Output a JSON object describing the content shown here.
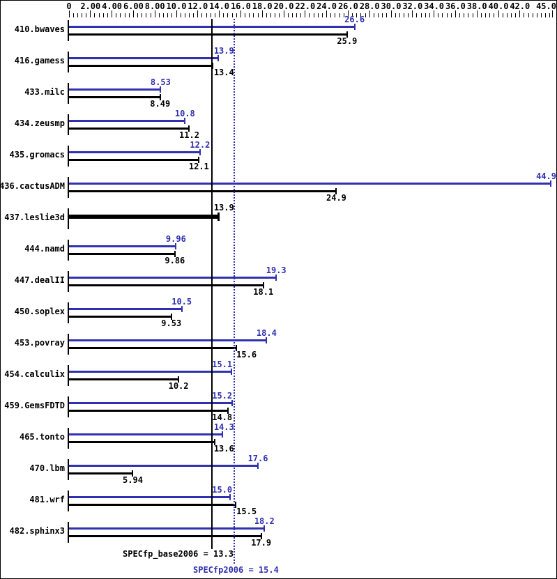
{
  "chart_data": {
    "type": "bar",
    "orientation": "horizontal",
    "colors": {
      "peak": "#3030b0",
      "base": "#000000"
    },
    "axis": {
      "min": 0,
      "max": 45,
      "major_step": 2.0,
      "minor_step": 0.4,
      "tick_labels": [
        {
          "value": 0,
          "label": "0"
        },
        {
          "value": 2,
          "label": "2.00"
        },
        {
          "value": 4,
          "label": "4.00"
        },
        {
          "value": 6,
          "label": "6.00"
        },
        {
          "value": 8,
          "label": "8.00"
        },
        {
          "value": 10,
          "label": "10.0"
        },
        {
          "value": 12,
          "label": "12.0"
        },
        {
          "value": 14,
          "label": "14.0"
        },
        {
          "value": 16,
          "label": "16.0"
        },
        {
          "value": 18,
          "label": "18.0"
        },
        {
          "value": 20,
          "label": "20.0"
        },
        {
          "value": 22,
          "label": "22.0"
        },
        {
          "value": 24,
          "label": "24.0"
        },
        {
          "value": 26,
          "label": "26.0"
        },
        {
          "value": 28,
          "label": "28.0"
        },
        {
          "value": 30,
          "label": "30.0"
        },
        {
          "value": 32,
          "label": "32.0"
        },
        {
          "value": 34,
          "label": "34.0"
        },
        {
          "value": 36,
          "label": "36.0"
        },
        {
          "value": 38,
          "label": "38.0"
        },
        {
          "value": 40,
          "label": "40.0"
        },
        {
          "value": 42,
          "label": "42.0"
        },
        {
          "value": 45,
          "label": "45.0"
        }
      ]
    },
    "benchmarks": [
      {
        "name": "410.bwaves",
        "peak": 26.6,
        "peak_label": "26.6",
        "base": 25.9,
        "base_label": "25.9"
      },
      {
        "name": "416.gamess",
        "peak": 13.9,
        "peak_label": "13.9",
        "base": 13.4,
        "base_label": "13.4"
      },
      {
        "name": "433.milc",
        "peak": 8.53,
        "peak_label": "8.53",
        "base": 8.49,
        "base_label": "8.49"
      },
      {
        "name": "434.zeusmp",
        "peak": 10.8,
        "peak_label": "10.8",
        "base": 11.2,
        "base_label": "11.2"
      },
      {
        "name": "435.gromacs",
        "peak": 12.2,
        "peak_label": "12.2",
        "base": 12.1,
        "base_label": "12.1"
      },
      {
        "name": "436.cactusADM",
        "peak": 44.9,
        "peak_label": "44.9",
        "base": 24.9,
        "base_label": "24.9"
      },
      {
        "name": "437.leslie3d",
        "peak": null,
        "peak_label": null,
        "base": 13.9,
        "base_label": "13.9",
        "single_bar": true
      },
      {
        "name": "444.namd",
        "peak": 9.96,
        "peak_label": "9.96",
        "base": 9.86,
        "base_label": "9.86"
      },
      {
        "name": "447.dealII",
        "peak": 19.3,
        "peak_label": "19.3",
        "base": 18.1,
        "base_label": "18.1"
      },
      {
        "name": "450.soplex",
        "peak": 10.5,
        "peak_label": "10.5",
        "base": 9.53,
        "base_label": "9.53"
      },
      {
        "name": "453.povray",
        "peak": 18.4,
        "peak_label": "18.4",
        "base": 15.6,
        "base_label": "15.6"
      },
      {
        "name": "454.calculix",
        "peak": 15.1,
        "peak_label": "15.1",
        "base": 10.2,
        "base_label": "10.2"
      },
      {
        "name": "459.GemsFDTD",
        "peak": 15.2,
        "peak_label": "15.2",
        "base": 14.8,
        "base_label": "14.8"
      },
      {
        "name": "465.tonto",
        "peak": 14.3,
        "peak_label": "14.3",
        "base": 13.6,
        "base_label": "13.6"
      },
      {
        "name": "470.lbm",
        "peak": 17.6,
        "peak_label": "17.6",
        "base": 5.94,
        "base_label": "5.94"
      },
      {
        "name": "481.wrf",
        "peak": 15.0,
        "peak_label": "15.0",
        "base": 15.5,
        "base_label": "15.5"
      },
      {
        "name": "482.sphinx3",
        "peak": 18.2,
        "peak_label": "18.2",
        "base": 17.9,
        "base_label": "17.9"
      }
    ],
    "reference_lines": [
      {
        "name": "base-mean",
        "value": 13.3,
        "style": "solid",
        "color": "#000000"
      },
      {
        "name": "peak-mean",
        "value": 15.4,
        "style": "dotted",
        "color": "#3030b0"
      }
    ],
    "footer": {
      "base_label": "SPECfp_base2006 = 13.3",
      "peak_label": "SPECfp2006 = 15.4"
    }
  }
}
